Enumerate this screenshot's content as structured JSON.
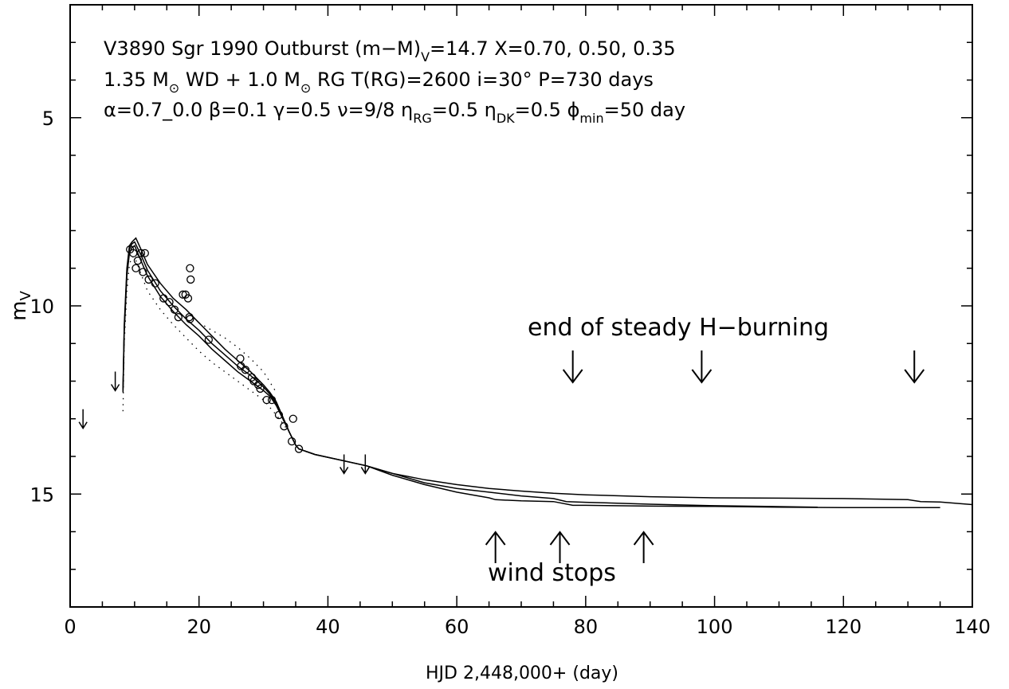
{
  "chart_data": {
    "type": "line",
    "xlabel": "HJD 2,448,000+ (day)",
    "ylabel_main": "m",
    "ylabel_sub": "V",
    "xlim": [
      0,
      140
    ],
    "ylim": [
      18.0,
      2.0
    ],
    "y_inverted": true,
    "grid": false,
    "x_ticks": [
      0,
      20,
      40,
      60,
      80,
      100,
      120,
      140
    ],
    "y_ticks": [
      5,
      10,
      15
    ],
    "annotations": {
      "line1": {
        "a": "V3890 Sgr 1990 Outburst  (m−M)",
        "a_sub": "V",
        "b": "=14.7  X=0.70, 0.50, 0.35"
      },
      "line2": {
        "a": "1.35 M",
        "a_sun": "⊙",
        "b": " WD + 1.0 M",
        "b_sun": "⊙",
        "c": " RG  T(RG)=2600  i=30°  P=730 days"
      },
      "line3": {
        "alpha": "α=0.7_0.0 β=0.1 γ=0.5 ν=9/8  η",
        "rg_sub": "RG",
        "mid": "=0.5  η",
        "dk_sub": "DK",
        "mid2": "=0.5 ϕ",
        "min_sub": "min",
        "end": "=50 day"
      },
      "h_burning": "end of steady H−burning",
      "wind_stops": "wind stops"
    },
    "down_arrow_days": [
      78,
      98,
      131
    ],
    "up_arrow_days": [
      66,
      76,
      89
    ],
    "upper_limit_points": [
      [
        2.0,
        13.0
      ],
      [
        7.0,
        12.0
      ],
      [
        42.5,
        14.2
      ],
      [
        45.8,
        14.2
      ]
    ],
    "observations": [
      [
        9.3,
        8.5
      ],
      [
        9.8,
        8.6
      ],
      [
        10.2,
        9.0
      ],
      [
        10.5,
        8.8
      ],
      [
        11.0,
        8.6
      ],
      [
        11.3,
        9.1
      ],
      [
        11.6,
        8.6
      ],
      [
        12.2,
        9.3
      ],
      [
        13.2,
        9.4
      ],
      [
        14.5,
        9.8
      ],
      [
        15.4,
        9.9
      ],
      [
        16.2,
        10.1
      ],
      [
        16.8,
        10.3
      ],
      [
        17.5,
        9.7
      ],
      [
        17.9,
        9.7
      ],
      [
        18.3,
        9.8
      ],
      [
        18.5,
        10.3
      ],
      [
        18.6,
        10.35
      ],
      [
        18.6,
        9.0
      ],
      [
        18.7,
        9.3
      ],
      [
        21.5,
        10.9
      ],
      [
        26.4,
        11.4
      ],
      [
        26.5,
        11.6
      ],
      [
        27.2,
        11.7
      ],
      [
        28.2,
        11.9
      ],
      [
        28.5,
        12.0
      ],
      [
        29.2,
        12.1
      ],
      [
        29.5,
        12.2
      ],
      [
        30.5,
        12.5
      ],
      [
        31.3,
        12.5
      ],
      [
        32.4,
        12.9
      ],
      [
        33.2,
        13.2
      ],
      [
        34.4,
        13.6
      ],
      [
        34.6,
        13.0
      ],
      [
        35.5,
        13.8
      ]
    ],
    "series": [
      {
        "style": "solid",
        "x": [
          8.2,
          8.4,
          8.8,
          9.2,
          9.6,
          9.9,
          10.2,
          11,
          12,
          14,
          16,
          18,
          20,
          22,
          24,
          26,
          28,
          30,
          31,
          32,
          33,
          34,
          35,
          35.5,
          38,
          42,
          46,
          50,
          55,
          60,
          65,
          70,
          75,
          80,
          90,
          100,
          110,
          120,
          130,
          132,
          135,
          140
        ],
        "y": [
          12.2,
          10.5,
          9.0,
          8.4,
          8.3,
          8.25,
          8.2,
          8.5,
          8.9,
          9.4,
          9.8,
          10.1,
          10.45,
          10.8,
          11.15,
          11.45,
          11.75,
          12.1,
          12.3,
          12.55,
          12.95,
          13.35,
          13.7,
          13.8,
          13.95,
          14.1,
          14.25,
          14.45,
          14.62,
          14.75,
          14.85,
          14.92,
          14.98,
          15.02,
          15.07,
          15.1,
          15.11,
          15.12,
          15.15,
          15.2,
          15.21,
          15.28
        ]
      },
      {
        "style": "solid",
        "x": [
          8.2,
          8.4,
          8.8,
          9.2,
          9.6,
          10.0,
          11,
          12,
          14,
          16,
          18,
          20,
          22,
          24,
          26,
          28,
          30,
          31,
          32,
          33,
          34,
          35,
          35.5,
          38,
          42,
          46,
          50,
          55,
          60,
          65,
          70,
          75,
          77,
          80,
          90,
          100,
          108,
          116
        ],
        "y": [
          12.25,
          10.6,
          9.1,
          8.5,
          8.35,
          8.3,
          8.65,
          9.05,
          9.6,
          10.0,
          10.35,
          10.65,
          11.0,
          11.3,
          11.6,
          11.85,
          12.15,
          12.35,
          12.6,
          12.95,
          13.35,
          13.7,
          13.8,
          13.95,
          14.1,
          14.25,
          14.45,
          14.7,
          14.85,
          14.95,
          15.05,
          15.12,
          15.2,
          15.22,
          15.27,
          15.31,
          15.33,
          15.35
        ]
      },
      {
        "style": "solid",
        "x": [
          8.2,
          8.4,
          8.8,
          9.2,
          9.6,
          10.0,
          11,
          12,
          14,
          16,
          18,
          20,
          22,
          24,
          26,
          28,
          30,
          31,
          32,
          33,
          34,
          35,
          35.5,
          38,
          42,
          46,
          50,
          55,
          60,
          65,
          66,
          70,
          75,
          78,
          80,
          90,
          100,
          110,
          120,
          130,
          135
        ],
        "y": [
          12.3,
          10.7,
          9.2,
          8.6,
          8.45,
          8.4,
          8.8,
          9.2,
          9.75,
          10.15,
          10.5,
          10.8,
          11.15,
          11.45,
          11.75,
          12.0,
          12.25,
          12.4,
          12.65,
          13.0,
          13.35,
          13.7,
          13.8,
          13.95,
          14.1,
          14.25,
          14.5,
          14.75,
          14.95,
          15.1,
          15.15,
          15.18,
          15.2,
          15.3,
          15.3,
          15.32,
          15.33,
          15.35,
          15.36,
          15.36,
          15.36
        ]
      },
      {
        "style": "dotted",
        "x": [
          8.2,
          8.4,
          8.8,
          9.2,
          9.6,
          10.0,
          11,
          12,
          14,
          16,
          18,
          20,
          22,
          24,
          26,
          28,
          30,
          32,
          34
        ],
        "y": [
          12.8,
          11.0,
          9.6,
          8.9,
          8.7,
          8.7,
          9.15,
          9.6,
          10.1,
          10.5,
          10.85,
          11.2,
          11.5,
          11.75,
          12.0,
          12.25,
          12.5,
          12.9,
          13.35
        ]
      },
      {
        "style": "dotted",
        "x": [
          20,
          22,
          24,
          26,
          28,
          30,
          32
        ],
        "y": [
          10.45,
          10.65,
          10.85,
          11.1,
          11.4,
          11.75,
          12.3
        ]
      }
    ]
  }
}
